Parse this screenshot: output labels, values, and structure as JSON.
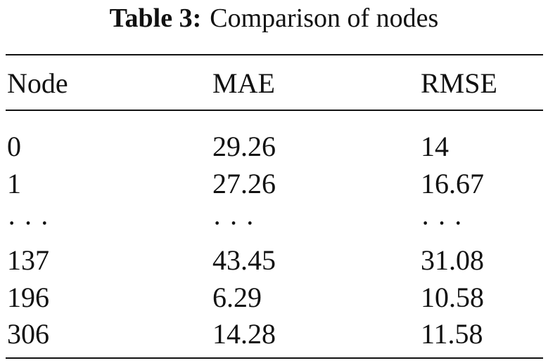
{
  "caption": {
    "label": "Table 3:",
    "text": "Comparison of nodes"
  },
  "table": {
    "header": [
      "Node",
      "MAE",
      "RMSE"
    ],
    "rows": [
      [
        "0",
        "29.26",
        "14"
      ],
      [
        "1",
        "27.26",
        "16.67"
      ],
      [
        "· · ·",
        "· · ·",
        "· · ·"
      ],
      [
        "137",
        "43.45",
        "31.08"
      ],
      [
        "196",
        "6.29",
        "10.58"
      ],
      [
        "306",
        "14.28",
        "11.58"
      ]
    ]
  }
}
